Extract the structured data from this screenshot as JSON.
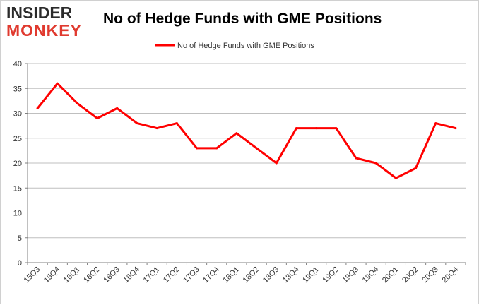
{
  "logo": {
    "line1": "INSIDER",
    "line2": "MONKEY"
  },
  "colors": {
    "series": "#ff0000",
    "grid": "#bfbfbf",
    "axis": "#808080"
  },
  "chart_data": {
    "type": "line",
    "title": "No of Hedge Funds with GME Positions",
    "xlabel": "",
    "ylabel": "",
    "ylim": [
      0,
      40
    ],
    "yticks": [
      0,
      5,
      10,
      15,
      20,
      25,
      30,
      35,
      40
    ],
    "grid": true,
    "legend_position": "top-center",
    "categories": [
      "15Q3",
      "15Q4",
      "16Q1",
      "16Q2",
      "16Q3",
      "16Q4",
      "17Q1",
      "17Q2",
      "17Q3",
      "17Q4",
      "18Q1",
      "18Q2",
      "18Q3",
      "18Q4",
      "19Q1",
      "19Q2",
      "19Q3",
      "19Q4",
      "20Q1",
      "20Q2",
      "20Q3",
      "20Q4"
    ],
    "series": [
      {
        "name": "No of Hedge Funds with GME Positions",
        "values": [
          31,
          36,
          32,
          29,
          31,
          28,
          27,
          28,
          23,
          23,
          26,
          23,
          20,
          27,
          27,
          27,
          21,
          20,
          17,
          19,
          28,
          27
        ]
      }
    ]
  }
}
